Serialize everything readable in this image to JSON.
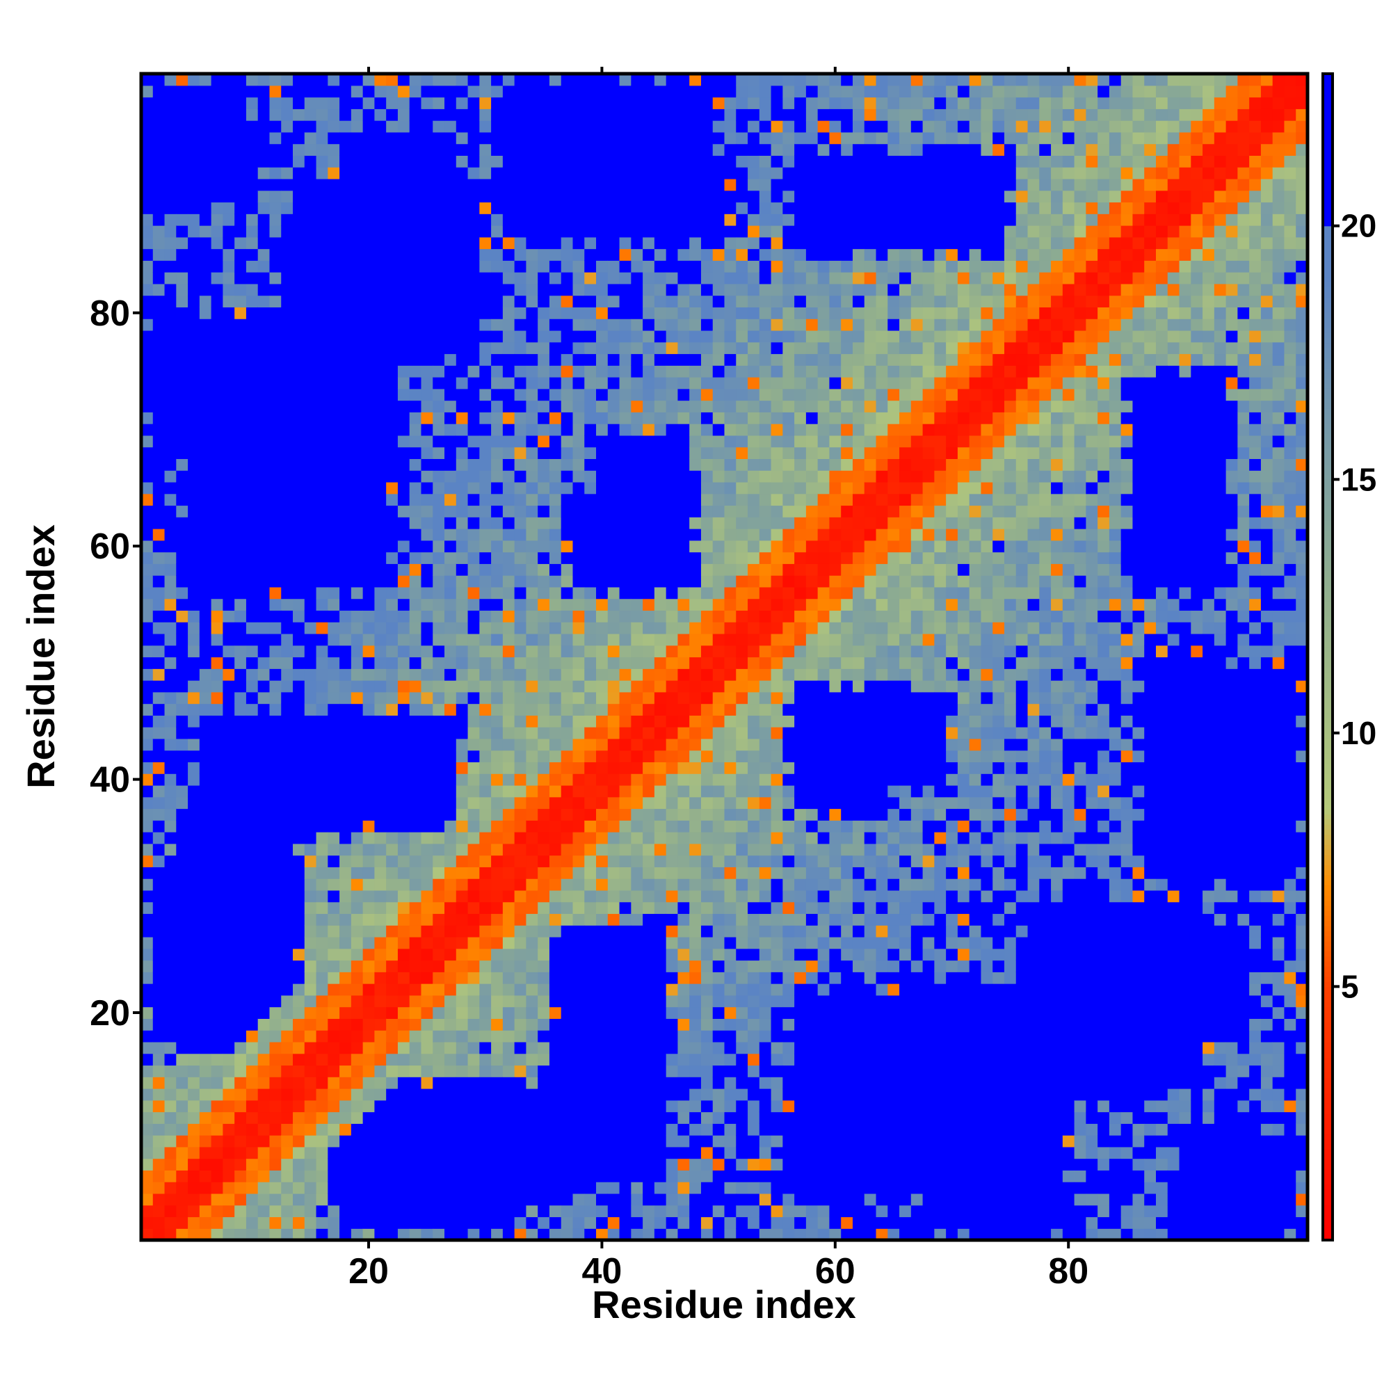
{
  "chart_data": {
    "type": "heatmap",
    "title": "",
    "xlabel": "Residue index",
    "ylabel": "Residue index",
    "n_residues": 100,
    "x_ticks": [
      20,
      40,
      60,
      80
    ],
    "y_ticks": [
      20,
      40,
      60,
      80
    ],
    "x_tick_labels": [
      "20",
      "40",
      "60",
      "80"
    ],
    "y_tick_labels": [
      "20",
      "40",
      "60",
      "80"
    ],
    "colorbar": {
      "range": [
        0,
        23
      ],
      "ticks": [
        5,
        10,
        15,
        20
      ],
      "tick_labels": [
        "5",
        "10",
        "15",
        "20"
      ],
      "stops": [
        {
          "value": 0,
          "color": "#ff0000"
        },
        {
          "value": 5,
          "color": "#ff4000"
        },
        {
          "value": 7,
          "color": "#ff8c00"
        },
        {
          "value": 8.5,
          "color": "#b5c97a"
        },
        {
          "value": 13,
          "color": "#8fad8f"
        },
        {
          "value": 19,
          "color": "#5b84c4"
        },
        {
          "value": 20,
          "color": "#0000ff"
        }
      ]
    },
    "cutoff_value": 20,
    "diagonal_band": {
      "red_width": 2,
      "orange_width": 5
    },
    "blue_regions": [
      {
        "x": [
          17,
          28
        ],
        "y": [
          75,
          95
        ],
        "note": "far"
      },
      {
        "x": [
          3,
          22
        ],
        "y": [
          55,
          78
        ]
      },
      {
        "x": [
          14,
          27
        ],
        "y": [
          35,
          45
        ]
      },
      {
        "x": [
          2,
          14
        ],
        "y": [
          15,
          38
        ]
      },
      {
        "x": [
          17,
          33
        ],
        "y": [
          0,
          14
        ]
      },
      {
        "x": [
          35,
          46
        ],
        "y": [
          5,
          28
        ]
      },
      {
        "x": [
          36,
          46
        ],
        "y": [
          55,
          65
        ]
      },
      {
        "x": [
          55,
          70
        ],
        "y": [
          38,
          48
        ]
      },
      {
        "x": [
          76,
          92
        ],
        "y": [
          12,
          30
        ]
      },
      {
        "x": [
          66,
          80
        ],
        "y": [
          0,
          22
        ]
      },
      {
        "x": [
          84,
          94
        ],
        "y": [
          55,
          75
        ]
      },
      {
        "x": [
          57,
          72
        ],
        "y": [
          85,
          93
        ]
      },
      {
        "x": [
          38,
          45
        ],
        "y": [
          90,
          100
        ]
      },
      {
        "x": [
          85,
          100
        ],
        "y": [
          30,
          50
        ]
      },
      {
        "x": [
          88,
          100
        ],
        "y": [
          0,
          10
        ]
      }
    ]
  }
}
